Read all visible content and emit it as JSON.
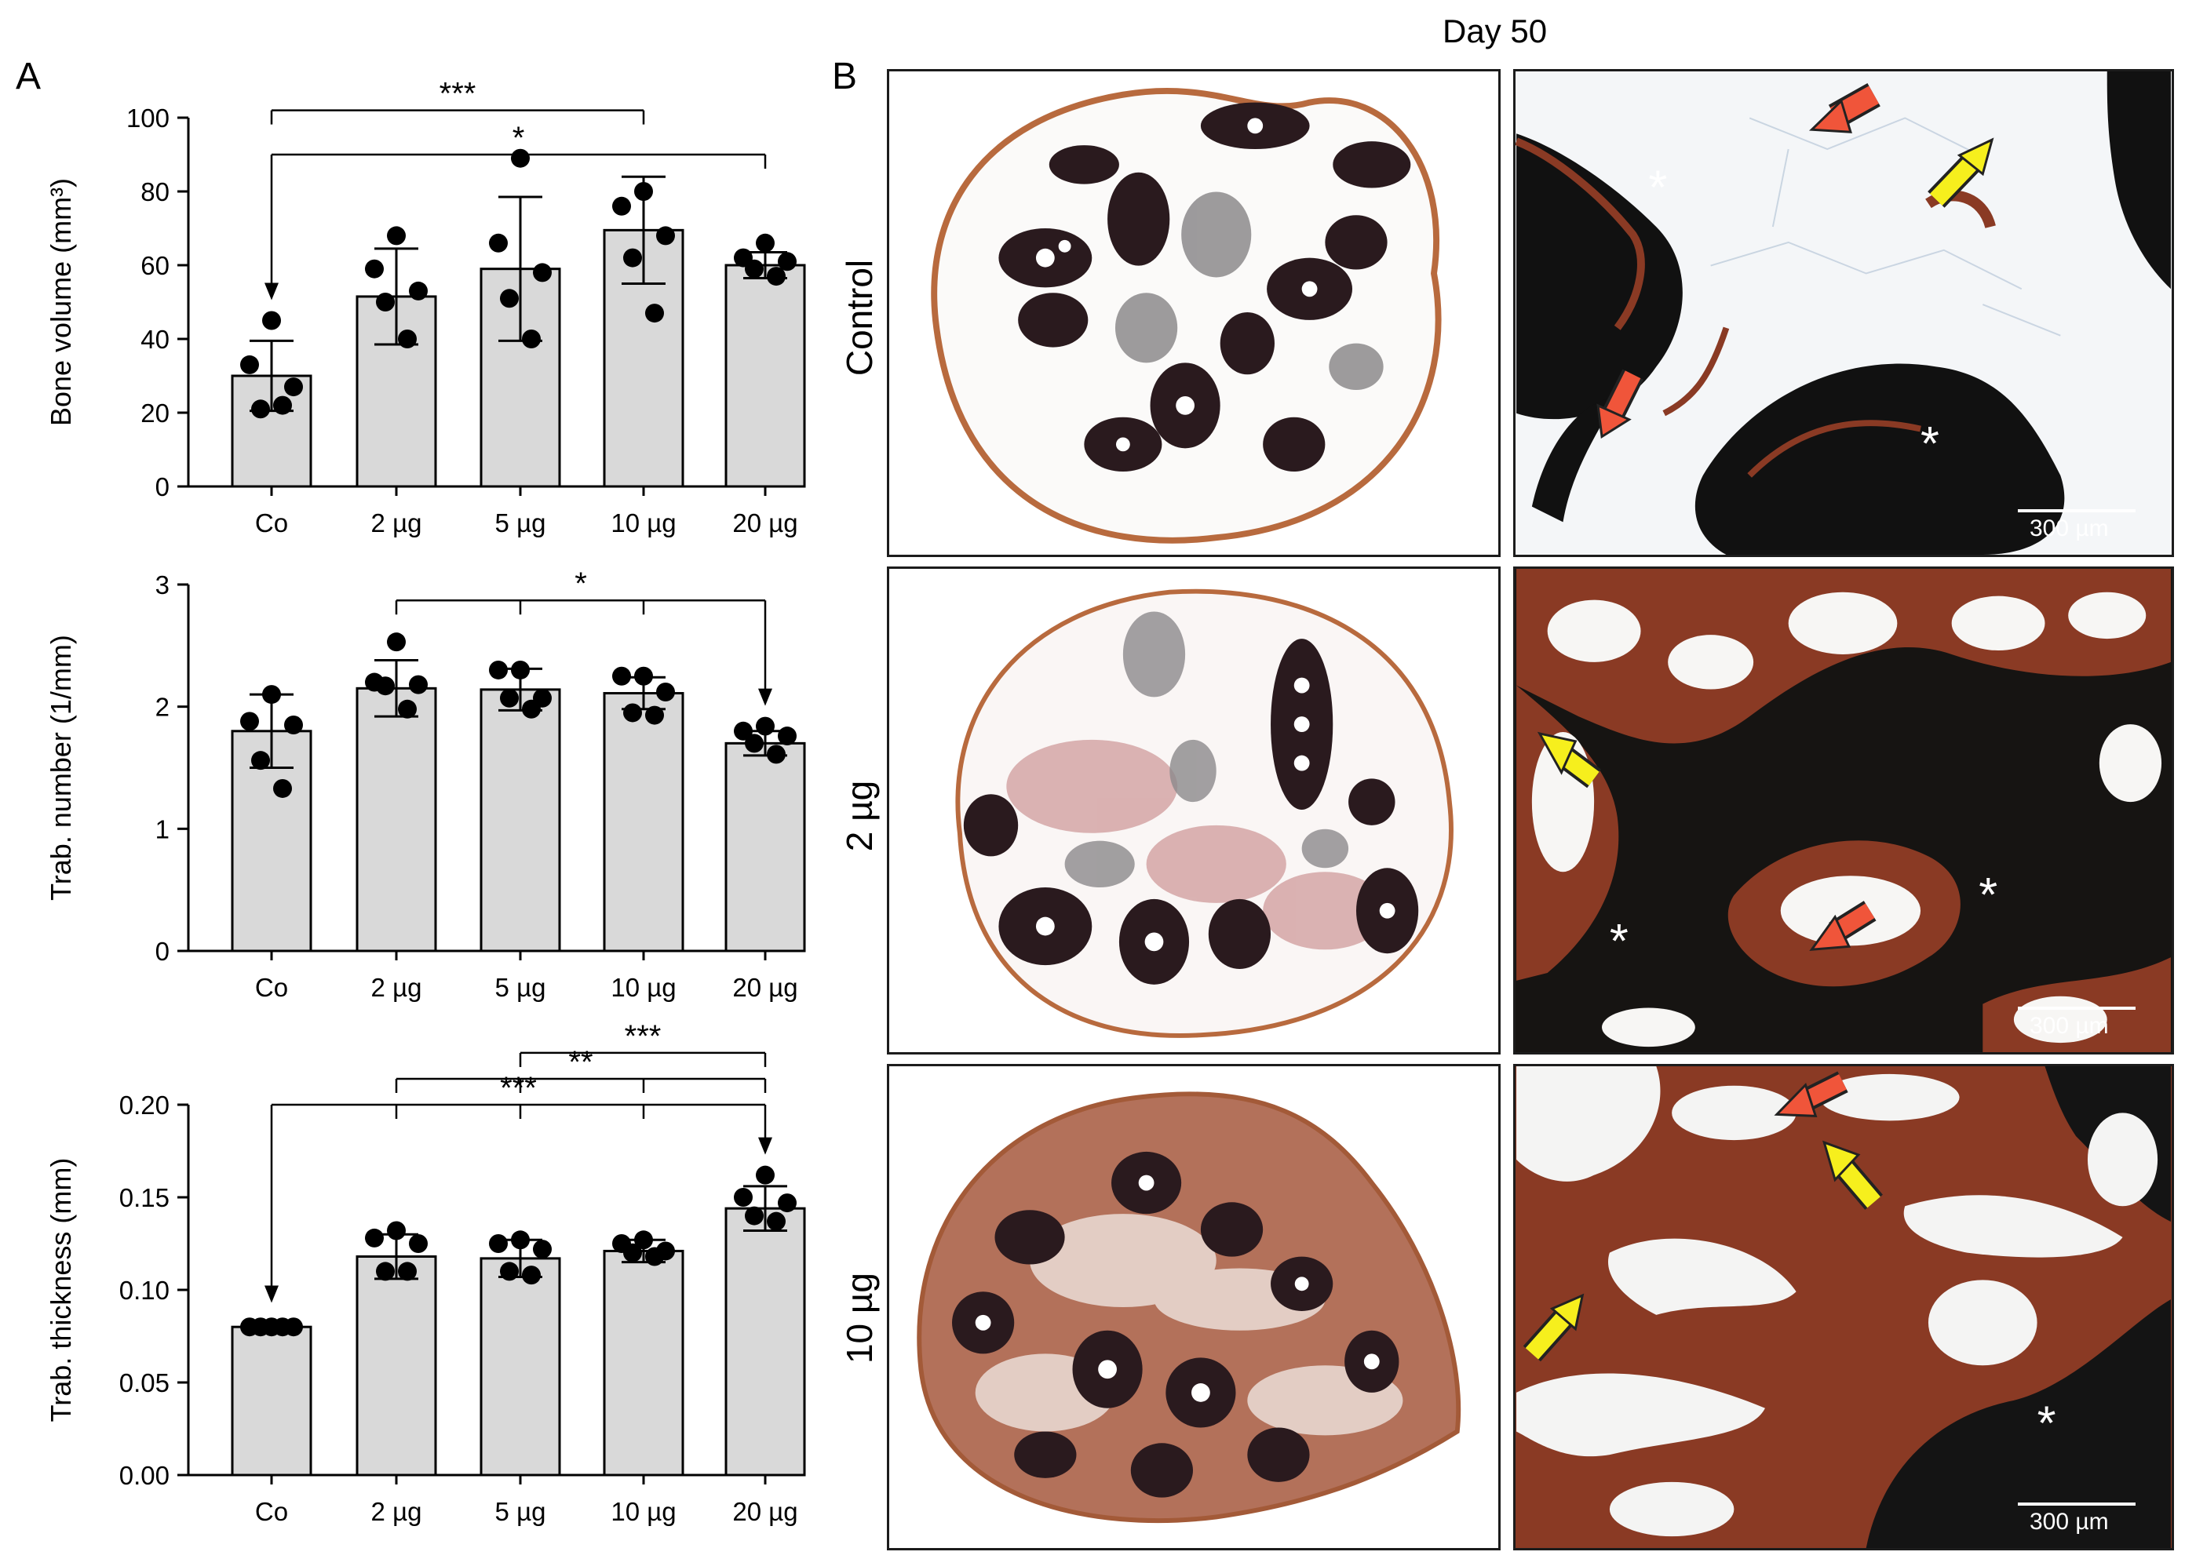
{
  "panel_a_letter": "A",
  "panel_b_letter": "B",
  "day_label": "Day 50",
  "histology": {
    "row_labels": [
      "Control",
      "2 µg",
      "10 µg"
    ],
    "scale_bar": "300 µm",
    "asterisk": "*"
  },
  "chart_data": [
    {
      "type": "bar",
      "categories": [
        "Co",
        "2 µg",
        "5 µg",
        "10 µg",
        "20 µg"
      ],
      "values": [
        30,
        51.5,
        59,
        69.5,
        60
      ],
      "sd": [
        9.5,
        13,
        19.5,
        14.5,
        3.5
      ],
      "points": [
        [
          45,
          33,
          27,
          21,
          22
        ],
        [
          68,
          59,
          53,
          50,
          40
        ],
        [
          89,
          66,
          58,
          51,
          40
        ],
        [
          80,
          76,
          68,
          62,
          47
        ],
        [
          66,
          62,
          61,
          59,
          57
        ]
      ],
      "ylabel": "Bone volume (mm³)",
      "ylim": [
        0,
        100
      ],
      "yticks": [
        0,
        20,
        40,
        60,
        80,
        100
      ],
      "ytick_labels": [
        "0",
        "20",
        "40",
        "60",
        "80",
        "100"
      ],
      "significance": [
        {
          "from": 0,
          "to": 3,
          "label": "***",
          "level": 102
        },
        {
          "from": 0,
          "to": 4,
          "label": "*",
          "level": 90,
          "arrow": "from"
        }
      ]
    },
    {
      "type": "bar",
      "categories": [
        "Co",
        "2 µg",
        "5 µg",
        "10 µg",
        "20 µg"
      ],
      "values": [
        1.8,
        2.15,
        2.14,
        2.11,
        1.7
      ],
      "sd": [
        0.3,
        0.23,
        0.17,
        0.13,
        0.1
      ],
      "points": [
        [
          2.1,
          1.88,
          1.85,
          1.56,
          1.33
        ],
        [
          2.53,
          2.2,
          2.18,
          2.17,
          1.98
        ],
        [
          2.3,
          2.3,
          2.07,
          2.07,
          1.98
        ],
        [
          2.25,
          2.25,
          2.12,
          1.95,
          1.93
        ],
        [
          1.84,
          1.8,
          1.76,
          1.7,
          1.61
        ]
      ],
      "ylabel": "Trab. number (1/mm)",
      "ylim": [
        0,
        3
      ],
      "yticks": [
        0,
        1,
        2,
        3
      ],
      "ytick_labels": [
        "0",
        "1",
        "2",
        "3"
      ],
      "significance": [
        {
          "from": 1,
          "to": 4,
          "label": "*",
          "level": 2.87,
          "arrow": "to",
          "ticks": [
            2,
            3
          ]
        }
      ]
    },
    {
      "type": "bar",
      "categories": [
        "Co",
        "2 µg",
        "5 µg",
        "10 µg",
        "20 µg"
      ],
      "values": [
        0.08,
        0.118,
        0.117,
        0.121,
        0.144
      ],
      "sd": [
        0.002,
        0.012,
        0.01,
        0.006,
        0.012
      ],
      "points": [
        [
          0.08,
          0.08,
          0.08,
          0.08,
          0.08
        ],
        [
          0.132,
          0.128,
          0.125,
          0.11,
          0.11
        ],
        [
          0.127,
          0.125,
          0.122,
          0.11,
          0.108
        ],
        [
          0.127,
          0.125,
          0.121,
          0.12,
          0.118
        ],
        [
          0.162,
          0.15,
          0.147,
          0.14,
          0.137
        ]
      ],
      "ylabel": "Trab. thickness (mm)",
      "ylim": [
        0,
        0.2
      ],
      "yticks": [
        0,
        0.05,
        0.1,
        0.15,
        0.2
      ],
      "ytick_labels": [
        "0.00",
        "0.05",
        "0.10",
        "0.15",
        "0.20"
      ],
      "significance": [
        {
          "from": 2,
          "to": 4,
          "label": "***",
          "level": 0.228
        },
        {
          "from": 1,
          "to": 4,
          "label": "**",
          "level": 0.214,
          "ticks": [
            2,
            3
          ]
        },
        {
          "from": 0,
          "to": 4,
          "label": "***",
          "level": 0.2,
          "arrow": "both",
          "ticks": [
            1,
            2,
            3
          ]
        }
      ]
    }
  ],
  "colors": {
    "bar_fill": "#d9d9d9",
    "bone_dark": "#2a1a1e",
    "tissue_red": "#8a3a24",
    "marrow": "#f6f8fa",
    "arrow_red": "#f0553a",
    "arrow_yellow": "#f6ef1d"
  }
}
